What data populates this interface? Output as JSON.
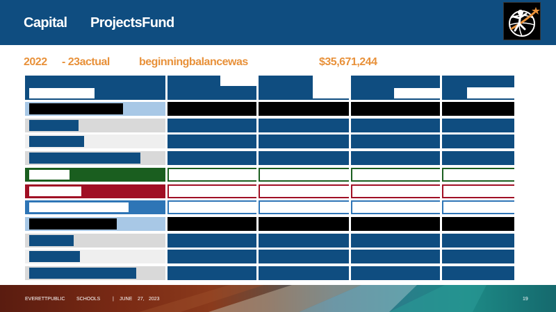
{
  "header": {
    "title_word1": "Capital",
    "title_word2": "ProjectsFund"
  },
  "subtitle": {
    "part1": "2022",
    "part2": "- 23actual",
    "part3": "beginningbalancewas",
    "amount": "$35,671,244"
  },
  "footer": {
    "org1": "EVERETTPUBLIC",
    "org2": "SCHOOLS",
    "separator": "|",
    "month": "JUNE",
    "day": "27,",
    "year": "2023",
    "page_number": "19"
  },
  "colors": {
    "header_blue": "#0f4d80",
    "accent_orange": "#e8913a",
    "row_green": "#1a5e1f",
    "row_red": "#a00f24",
    "row_mid_blue": "#2e75b6",
    "row_light_blue": "#a8c8e6",
    "row_gray": "#d9d9d9",
    "row_light_gray": "#efefef",
    "black": "#000000"
  },
  "table": {
    "bar_levels": [
      0.72,
      0.38,
      0.42,
      0.85,
      0.31,
      0.4,
      0.76,
      0.67,
      0.34,
      0.39,
      0.82
    ],
    "row_styles": [
      "black",
      "blue-gray",
      "blue-lightgray",
      "blue-gray",
      "green",
      "red",
      "midblue",
      "black",
      "blue-gray",
      "blue-lightgray",
      "blue-gray"
    ]
  }
}
